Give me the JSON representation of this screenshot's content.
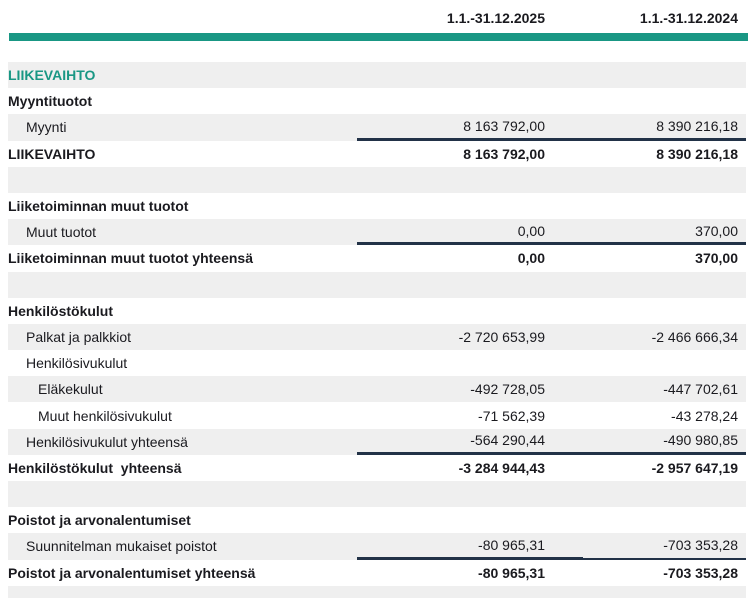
{
  "colors": {
    "accent": "#199784",
    "band": "#efefef",
    "rule": "#223247",
    "text": "#1a1a1f"
  },
  "header": {
    "periods": [
      "1.1.-31.12.2025",
      "1.1.-31.12.2024"
    ]
  },
  "rows": [
    {
      "label": "LIIKEVAIHTO",
      "indent": 0,
      "style": "section",
      "values": [
        "",
        ""
      ],
      "band": true,
      "underline": "none"
    },
    {
      "label": "Myyntituotot",
      "indent": 0,
      "style": "bold",
      "values": [
        "",
        ""
      ],
      "band": false,
      "underline": "none"
    },
    {
      "label": "Myynti",
      "indent": 1,
      "style": "regular",
      "values": [
        "8 163 792,00",
        "8 390 216,18"
      ],
      "band": true,
      "underline": "full"
    },
    {
      "label": "LIIKEVAIHTO",
      "indent": 0,
      "style": "bold",
      "values": [
        "8 163 792,00",
        "8 390 216,18"
      ],
      "band": false,
      "underline": "none"
    },
    {
      "label": "",
      "indent": 0,
      "style": "regular",
      "values": [
        "",
        ""
      ],
      "band": true,
      "underline": "none"
    },
    {
      "label": "Liiketoiminnan muut tuotot",
      "indent": 0,
      "style": "bold",
      "values": [
        "",
        ""
      ],
      "band": false,
      "underline": "none"
    },
    {
      "label": "Muut tuotot",
      "indent": 1,
      "style": "regular",
      "values": [
        "0,00",
        "370,00"
      ],
      "band": true,
      "underline": "full"
    },
    {
      "label": "Liiketoiminnan muut tuotot yhteensä",
      "indent": 0,
      "style": "bold",
      "values": [
        "0,00",
        "370,00"
      ],
      "band": false,
      "underline": "none"
    },
    {
      "label": "",
      "indent": 0,
      "style": "regular",
      "values": [
        "",
        ""
      ],
      "band": true,
      "underline": "none"
    },
    {
      "label": "Henkilöstökulut",
      "indent": 0,
      "style": "bold",
      "values": [
        "",
        ""
      ],
      "band": false,
      "underline": "none"
    },
    {
      "label": "Palkat ja palkkiot",
      "indent": 1,
      "style": "regular",
      "values": [
        "-2 720 653,99",
        "-2 466 666,34"
      ],
      "band": true,
      "underline": "none"
    },
    {
      "label": "Henkilösivukulut",
      "indent": 1,
      "style": "regular",
      "values": [
        "",
        ""
      ],
      "band": false,
      "underline": "none"
    },
    {
      "label": "Eläkekulut",
      "indent": 2,
      "style": "regular",
      "values": [
        "-492 728,05",
        "-447 702,61"
      ],
      "band": true,
      "underline": "none"
    },
    {
      "label": "Muut henkilösivukulut",
      "indent": 2,
      "style": "regular",
      "values": [
        "-71 562,39",
        "-43 278,24"
      ],
      "band": false,
      "underline": "none"
    },
    {
      "label": "Henkilösivukulut yhteensä",
      "indent": 1,
      "style": "regular",
      "values": [
        "-564 290,44",
        "-490 980,85"
      ],
      "band": true,
      "underline": "full"
    },
    {
      "label": "Henkilöstökulut  yhteensä",
      "indent": 0,
      "style": "bold",
      "values": [
        "-3 284 944,43",
        "-2 957 647,19"
      ],
      "band": false,
      "underline": "none"
    },
    {
      "label": "",
      "indent": 0,
      "style": "regular",
      "values": [
        "",
        ""
      ],
      "band": true,
      "underline": "none"
    },
    {
      "label": "Poistot ja arvonalentumiset",
      "indent": 0,
      "style": "bold",
      "values": [
        "",
        ""
      ],
      "band": false,
      "underline": "none"
    },
    {
      "label": "Suunnitelman mukaiset poistot",
      "indent": 1,
      "style": "regular",
      "values": [
        "-80 965,31",
        "-703 353,28"
      ],
      "band": true,
      "underline": "thick-thin"
    },
    {
      "label": "Poistot ja arvonalentumiset yhteensä",
      "indent": 0,
      "style": "bold",
      "values": [
        "-80 965,31",
        "-703 353,28"
      ],
      "band": false,
      "underline": "none"
    },
    {
      "label": "",
      "indent": 0,
      "style": "regular",
      "values": [
        "",
        ""
      ],
      "band": true,
      "underline": "none"
    }
  ]
}
